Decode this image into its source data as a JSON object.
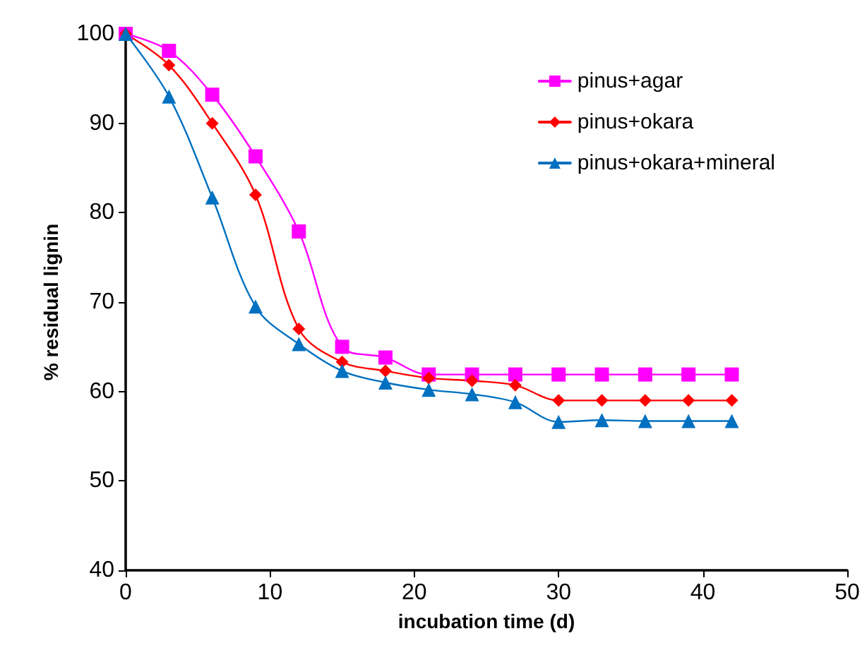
{
  "chart_data": {
    "type": "line",
    "xlabel": "incubation time (d)",
    "ylabel": "% residual lignin",
    "x": [
      0,
      3,
      6,
      9,
      12,
      15,
      18,
      21,
      24,
      27,
      30,
      33,
      36,
      39,
      42
    ],
    "series": [
      {
        "name": "pinus+agar",
        "color": "#ff00ff",
        "marker": "square",
        "values": [
          100,
          98.1,
          93.2,
          86.3,
          77.9,
          65,
          63.8,
          61.9,
          61.9,
          61.9,
          61.9,
          61.9,
          61.9,
          61.9,
          61.9
        ]
      },
      {
        "name": "pinus+okara",
        "color": "#ff0000",
        "marker": "diamond",
        "values": [
          100,
          96.5,
          90,
          82,
          67,
          63.3,
          62.3,
          61.5,
          61.2,
          60.7,
          59,
          59,
          59,
          59,
          59
        ]
      },
      {
        "name": "pinus+okara+mineral",
        "color": "#0070c0",
        "marker": "triangle",
        "values": [
          100,
          93,
          81.7,
          69.5,
          65.3,
          62.3,
          61,
          60.2,
          59.7,
          58.8,
          56.6,
          56.8,
          56.7,
          56.7,
          56.7
        ]
      }
    ],
    "xlim": [
      0,
      50
    ],
    "xticks": [
      0,
      10,
      20,
      30,
      40,
      50
    ],
    "ylim": [
      40,
      100
    ],
    "yticks": [
      40,
      50,
      60,
      70,
      80,
      90,
      100
    ],
    "grid": false,
    "legend": "top right",
    "line_style": "solid"
  }
}
